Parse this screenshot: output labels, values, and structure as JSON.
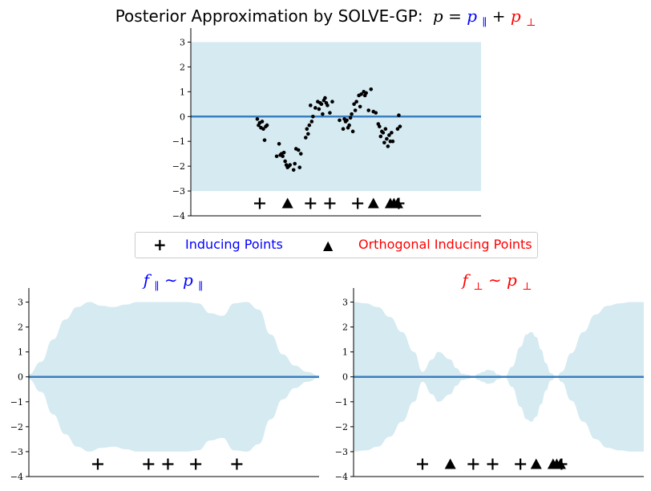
{
  "figure": {
    "main_title_text": "Posterior Approximation by SOLVE-GP:",
    "main_title_math": {
      "p": "p",
      "eq": " = ",
      "p_par": "p",
      "par_sub": "∥",
      "plus": " + ",
      "p_perp": "p",
      "perp_sub": "⊥"
    },
    "left_title": {
      "f": "f",
      "sub": "∥",
      "sim": " ∼ ",
      "p": "p",
      "psub": "∥"
    },
    "right_title": {
      "f": "f",
      "sub": "⊥",
      "sim": " ∼ ",
      "p": "p",
      "psub": "⊥"
    }
  },
  "legend": {
    "items": [
      {
        "marker": "+",
        "label": "Inducing Points",
        "color": "#0000ff"
      },
      {
        "marker": "▲",
        "label": "Orthogonal Inducing Points",
        "color": "#ff0000"
      }
    ]
  },
  "colors": {
    "band": "#d5eaf1",
    "mean": "#3a7fbf",
    "blue": "#0000ff",
    "red": "#ff0000"
  },
  "chart_data": [
    {
      "id": "top",
      "type": "line",
      "title": "Posterior Approximation by SOLVE-GP: p = p∥ + p⊥",
      "ylim": [
        -4,
        3.5
      ],
      "xlim": [
        -3.75,
        8.25
      ],
      "yticks": [
        -4,
        -3,
        -2,
        -1,
        0,
        1,
        2,
        3
      ],
      "mean": [
        [
          -3.75,
          0
        ],
        [
          8.25,
          0
        ]
      ],
      "band": {
        "x": [
          -3.75,
          8.25
        ],
        "upper": [
          3,
          3
        ],
        "lower": [
          -3,
          -3
        ]
      },
      "scatter": [
        [
          -1.0,
          -0.1
        ],
        [
          -0.95,
          -0.35
        ],
        [
          -0.9,
          -0.25
        ],
        [
          -0.85,
          -0.45
        ],
        [
          -0.8,
          -0.2
        ],
        [
          -0.75,
          -0.5
        ],
        [
          -0.7,
          -0.95
        ],
        [
          -0.65,
          -0.4
        ],
        [
          -0.6,
          -0.35
        ],
        [
          -0.2,
          -1.6
        ],
        [
          -0.1,
          -1.1
        ],
        [
          -0.05,
          -1.55
        ],
        [
          0.0,
          -1.5
        ],
        [
          0.05,
          -1.6
        ],
        [
          0.1,
          -1.45
        ],
        [
          0.15,
          -1.8
        ],
        [
          0.2,
          -1.95
        ],
        [
          0.25,
          -2.05
        ],
        [
          0.3,
          -2.0
        ],
        [
          0.35,
          -1.95
        ],
        [
          0.5,
          -2.15
        ],
        [
          0.55,
          -1.9
        ],
        [
          0.6,
          -1.3
        ],
        [
          0.7,
          -1.35
        ],
        [
          0.75,
          -2.05
        ],
        [
          0.8,
          -1.5
        ],
        [
          1.0,
          -0.85
        ],
        [
          1.05,
          -0.5
        ],
        [
          1.1,
          -0.7
        ],
        [
          1.15,
          -0.35
        ],
        [
          1.2,
          0.45
        ],
        [
          1.25,
          -0.2
        ],
        [
          1.3,
          0.0
        ],
        [
          1.4,
          0.35
        ],
        [
          1.5,
          0.6
        ],
        [
          1.55,
          0.3
        ],
        [
          1.6,
          0.55
        ],
        [
          1.65,
          0.5
        ],
        [
          1.7,
          0.1
        ],
        [
          1.75,
          0.65
        ],
        [
          1.8,
          0.75
        ],
        [
          1.85,
          0.55
        ],
        [
          1.9,
          0.45
        ],
        [
          2.0,
          0.15
        ],
        [
          2.1,
          0.6
        ],
        [
          2.4,
          -0.15
        ],
        [
          2.55,
          -0.5
        ],
        [
          2.6,
          -0.1
        ],
        [
          2.65,
          -0.2
        ],
        [
          2.7,
          -0.15
        ],
        [
          2.75,
          -0.45
        ],
        [
          2.8,
          -0.35
        ],
        [
          2.85,
          -0.05
        ],
        [
          2.9,
          0.1
        ],
        [
          2.95,
          -0.6
        ],
        [
          3.0,
          0.5
        ],
        [
          3.05,
          0.25
        ],
        [
          3.1,
          0.6
        ],
        [
          3.2,
          0.85
        ],
        [
          3.25,
          0.4
        ],
        [
          3.3,
          0.9
        ],
        [
          3.4,
          1.0
        ],
        [
          3.45,
          0.85
        ],
        [
          3.5,
          0.95
        ],
        [
          3.6,
          0.25
        ],
        [
          3.7,
          1.1
        ],
        [
          3.8,
          0.2
        ],
        [
          3.9,
          0.15
        ],
        [
          4.0,
          -0.3
        ],
        [
          4.05,
          -0.4
        ],
        [
          4.1,
          -0.8
        ],
        [
          4.15,
          -0.6
        ],
        [
          4.2,
          -0.65
        ],
        [
          4.25,
          -1.05
        ],
        [
          4.3,
          -0.5
        ],
        [
          4.35,
          -0.9
        ],
        [
          4.4,
          -1.2
        ],
        [
          4.45,
          -0.75
        ],
        [
          4.5,
          -1.0
        ],
        [
          4.55,
          -0.65
        ],
        [
          4.6,
          -1.0
        ],
        [
          4.8,
          -0.5
        ],
        [
          4.85,
          0.05
        ],
        [
          4.9,
          -0.4
        ]
      ],
      "inducing_x": [
        -0.9,
        1.2,
        2.0,
        3.15,
        4.85
      ],
      "orthogonal_x": [
        0.25,
        3.8,
        4.5,
        4.65,
        4.8
      ],
      "marker_y": -3.5
    },
    {
      "id": "left",
      "type": "area",
      "title": "f∥ ∼ p∥",
      "ylim": [
        -4,
        3.5
      ],
      "xlim": [
        -3.75,
        8.25
      ],
      "yticks": [
        -4,
        -3,
        -2,
        -1,
        0,
        1,
        2,
        3
      ],
      "mean": [
        [
          -3.75,
          0
        ],
        [
          8.25,
          0
        ]
      ],
      "band": {
        "x": [
          -3.75,
          -3.25,
          -2.75,
          -2.25,
          -1.75,
          -1.25,
          -0.75,
          -0.25,
          0.25,
          0.75,
          1.25,
          1.75,
          2.25,
          2.75,
          3.25,
          3.75,
          4.25,
          4.75,
          5.25,
          5.75,
          6.25,
          6.75,
          7.25,
          7.75,
          8.25
        ],
        "upper": [
          0.1,
          0.6,
          1.5,
          2.3,
          2.8,
          3.0,
          2.85,
          2.8,
          2.9,
          3.0,
          3.0,
          3.0,
          3.0,
          3.0,
          2.95,
          2.55,
          2.45,
          2.95,
          3.0,
          2.7,
          1.7,
          0.9,
          0.45,
          0.2,
          0.05
        ]
      },
      "inducing_x": [
        -0.9,
        1.2,
        2.0,
        3.15,
        4.85
      ],
      "orthogonal_x": [],
      "marker_y": -3.5
    },
    {
      "id": "right",
      "type": "area",
      "title": "f⊥ ∼ p⊥",
      "ylim": [
        -4,
        3.5
      ],
      "xlim": [
        -3.75,
        8.25
      ],
      "yticks": [
        -4,
        -3,
        -2,
        -1,
        0,
        1,
        2,
        3
      ],
      "mean": [
        [
          -3.75,
          0
        ],
        [
          8.25,
          0
        ]
      ],
      "band": {
        "x": [
          -3.75,
          -3.25,
          -2.75,
          -2.25,
          -1.75,
          -1.25,
          -0.9,
          -0.5,
          -0.25,
          0.25,
          0.5,
          0.75,
          1.0,
          1.2,
          1.4,
          1.6,
          1.8,
          2.0,
          2.2,
          2.5,
          2.8,
          3.15,
          3.4,
          3.6,
          3.8,
          4.0,
          4.2,
          4.4,
          4.65,
          4.85,
          5.25,
          5.75,
          6.25,
          6.75,
          7.25,
          7.75,
          8.25
        ],
        "upper": [
          3.0,
          2.95,
          2.8,
          2.4,
          1.8,
          1.0,
          0.2,
          0.7,
          1.0,
          0.7,
          0.35,
          0.12,
          0.08,
          0.0,
          0.12,
          0.2,
          0.28,
          0.25,
          0.1,
          0.0,
          0.4,
          1.2,
          1.7,
          1.8,
          1.6,
          1.1,
          0.55,
          0.15,
          0.0,
          0.2,
          0.95,
          1.8,
          2.5,
          2.85,
          2.95,
          3.0,
          3.0
        ]
      },
      "inducing_x": [
        -0.9,
        1.2,
        2.0,
        3.15,
        4.85
      ],
      "orthogonal_x": [
        0.25,
        3.8,
        4.5,
        4.65,
        4.8
      ],
      "marker_y": -3.5
    }
  ]
}
